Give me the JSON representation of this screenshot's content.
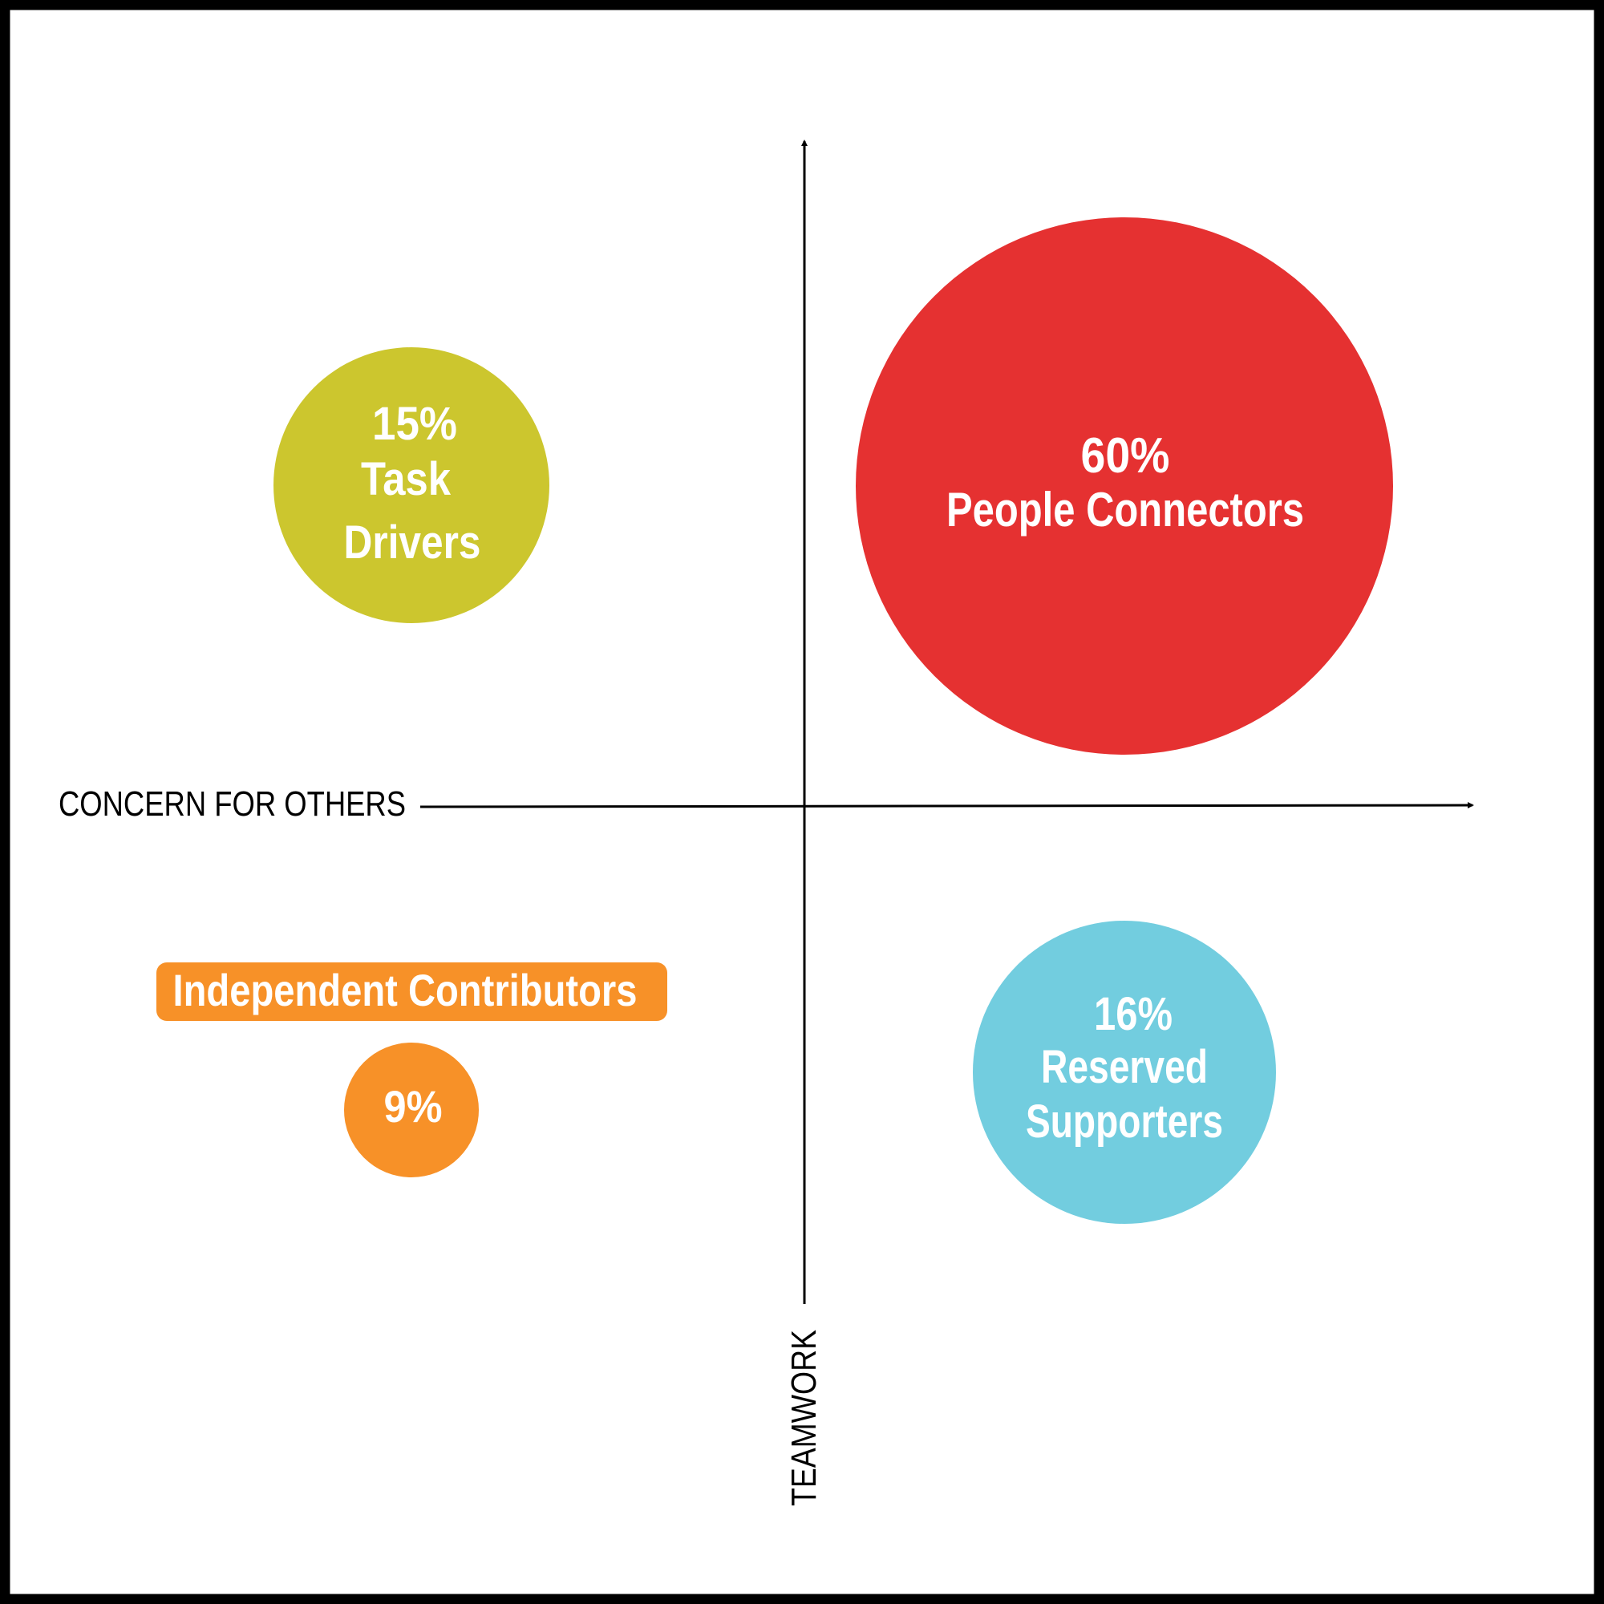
{
  "chart_data": {
    "type": "bubble-quadrant",
    "xlabel": "CONCERN FOR OTHERS",
    "ylabel": "TEAMWORK",
    "grid": false,
    "bubbles": [
      {
        "id": "task-drivers",
        "percent_label": "15%",
        "value": 15,
        "lines": [
          "Task",
          "Drivers"
        ],
        "color": "#CCC62E",
        "quadrant": "top-left"
      },
      {
        "id": "people-connectors",
        "percent_label": "60%",
        "value": 60,
        "lines": [
          "People Connectors"
        ],
        "color": "#E53131",
        "quadrant": "top-right"
      },
      {
        "id": "independent-contributors",
        "percent_label": "9%",
        "value": 9,
        "lines": [],
        "tag": "Independent Contributors",
        "color": "#F79128",
        "quadrant": "bottom-left"
      },
      {
        "id": "reserved-supporters",
        "percent_label": "16%",
        "value": 16,
        "lines": [
          "Reserved",
          "Supporters"
        ],
        "color": "#72CDDF",
        "quadrant": "bottom-right"
      }
    ]
  }
}
